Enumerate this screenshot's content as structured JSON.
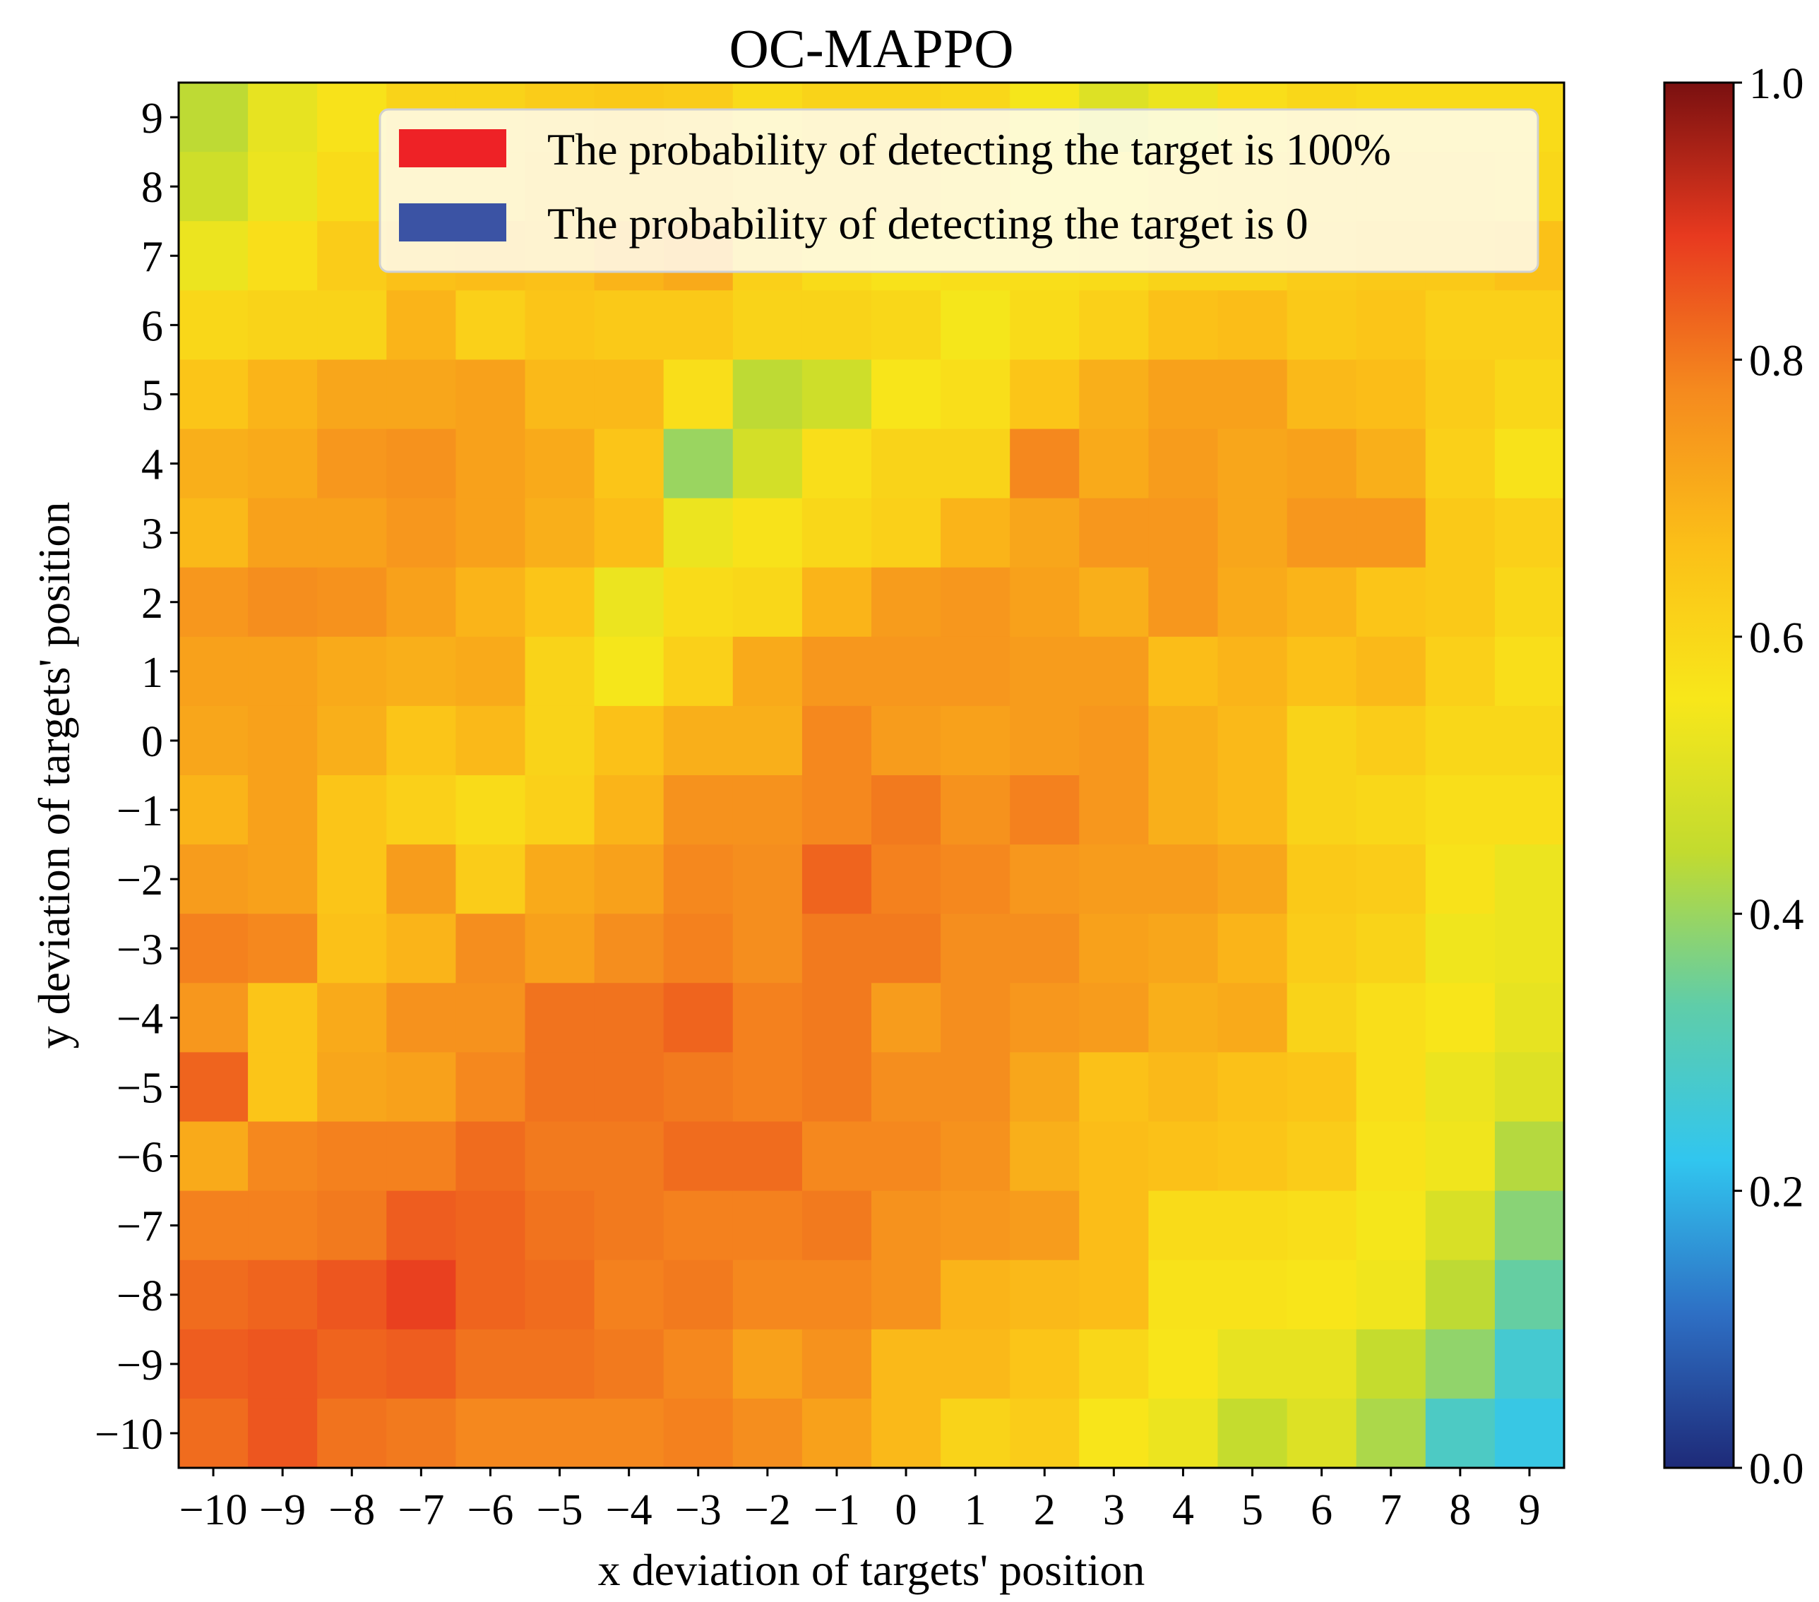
{
  "chart_data": {
    "type": "heatmap",
    "title": "OC-MAPPO",
    "xlabel": "x deviation of targets' position",
    "ylabel": "y deviation of targets' position",
    "x_ticks": [
      "−10",
      "−9",
      "−8",
      "−7",
      "−6",
      "−5",
      "−4",
      "−3",
      "−2",
      "−1",
      "0",
      "1",
      "2",
      "3",
      "4",
      "5",
      "6",
      "7",
      "8",
      "9"
    ],
    "y_ticks": [
      "9",
      "8",
      "7",
      "6",
      "5",
      "4",
      "3",
      "2",
      "1",
      "0",
      "−1",
      "−2",
      "−3",
      "−4",
      "−5",
      "−6",
      "−7",
      "−8",
      "−9",
      "−10"
    ],
    "colorbar": {
      "range": [
        0,
        1
      ],
      "ticks": [
        "0.0",
        "0.2",
        "0.4",
        "0.6",
        "0.8",
        "1.0"
      ],
      "stops": [
        "#1e2a78",
        "#2e6fc4",
        "#31c6ef",
        "#5fcda9",
        "#c2db2f",
        "#f8e71a",
        "#fbbf18",
        "#f58a1e",
        "#e83a1f",
        "#7a1010"
      ]
    },
    "legend": {
      "placement": "top-right",
      "items": [
        {
          "label": "The probability of detecting the target is 100%",
          "color": "#ee2226"
        },
        {
          "label": "The probability of detecting the target is 0",
          "color": "#3b53a4"
        }
      ]
    },
    "values": [
      [
        0.44,
        0.52,
        0.57,
        0.61,
        0.61,
        0.63,
        0.64,
        0.63,
        0.59,
        0.61,
        0.61,
        0.6,
        0.55,
        0.5,
        0.53,
        0.58,
        0.6,
        0.59,
        0.59,
        0.59
      ],
      [
        0.47,
        0.53,
        0.59,
        0.61,
        0.62,
        0.64,
        0.64,
        0.64,
        0.61,
        0.62,
        0.61,
        0.59,
        0.56,
        0.56,
        0.59,
        0.6,
        0.61,
        0.62,
        0.61,
        0.6
      ],
      [
        0.53,
        0.58,
        0.63,
        0.66,
        0.67,
        0.66,
        0.69,
        0.71,
        0.62,
        0.59,
        0.57,
        0.58,
        0.58,
        0.59,
        0.61,
        0.61,
        0.63,
        0.64,
        0.64,
        0.66
      ],
      [
        0.6,
        0.61,
        0.61,
        0.69,
        0.62,
        0.65,
        0.64,
        0.64,
        0.61,
        0.61,
        0.6,
        0.55,
        0.59,
        0.62,
        0.66,
        0.67,
        0.64,
        0.65,
        0.62,
        0.62
      ],
      [
        0.65,
        0.69,
        0.72,
        0.72,
        0.73,
        0.68,
        0.68,
        0.58,
        0.44,
        0.47,
        0.56,
        0.58,
        0.65,
        0.7,
        0.73,
        0.73,
        0.68,
        0.67,
        0.63,
        0.6
      ],
      [
        0.7,
        0.71,
        0.75,
        0.76,
        0.73,
        0.71,
        0.65,
        0.4,
        0.48,
        0.58,
        0.61,
        0.61,
        0.78,
        0.71,
        0.74,
        0.72,
        0.73,
        0.7,
        0.62,
        0.57
      ],
      [
        0.68,
        0.73,
        0.73,
        0.75,
        0.73,
        0.7,
        0.67,
        0.53,
        0.57,
        0.6,
        0.62,
        0.69,
        0.72,
        0.75,
        0.75,
        0.72,
        0.75,
        0.75,
        0.64,
        0.62
      ],
      [
        0.75,
        0.77,
        0.76,
        0.73,
        0.69,
        0.65,
        0.53,
        0.59,
        0.6,
        0.69,
        0.74,
        0.75,
        0.73,
        0.7,
        0.75,
        0.71,
        0.69,
        0.65,
        0.64,
        0.6
      ],
      [
        0.73,
        0.73,
        0.71,
        0.7,
        0.71,
        0.61,
        0.55,
        0.62,
        0.71,
        0.75,
        0.75,
        0.75,
        0.74,
        0.74,
        0.67,
        0.69,
        0.66,
        0.68,
        0.62,
        0.58
      ],
      [
        0.72,
        0.73,
        0.7,
        0.65,
        0.68,
        0.61,
        0.66,
        0.7,
        0.7,
        0.78,
        0.74,
        0.73,
        0.74,
        0.75,
        0.7,
        0.68,
        0.61,
        0.63,
        0.6,
        0.6
      ],
      [
        0.69,
        0.73,
        0.65,
        0.62,
        0.59,
        0.62,
        0.69,
        0.76,
        0.76,
        0.78,
        0.8,
        0.76,
        0.79,
        0.75,
        0.7,
        0.68,
        0.61,
        0.6,
        0.58,
        0.58
      ],
      [
        0.74,
        0.73,
        0.65,
        0.74,
        0.63,
        0.71,
        0.73,
        0.78,
        0.77,
        0.83,
        0.79,
        0.78,
        0.75,
        0.74,
        0.74,
        0.72,
        0.64,
        0.63,
        0.57,
        0.53
      ],
      [
        0.79,
        0.78,
        0.66,
        0.69,
        0.77,
        0.73,
        0.77,
        0.79,
        0.77,
        0.8,
        0.8,
        0.77,
        0.77,
        0.73,
        0.72,
        0.69,
        0.63,
        0.61,
        0.54,
        0.53
      ],
      [
        0.75,
        0.65,
        0.71,
        0.76,
        0.76,
        0.81,
        0.81,
        0.83,
        0.79,
        0.8,
        0.74,
        0.77,
        0.75,
        0.74,
        0.7,
        0.71,
        0.61,
        0.58,
        0.56,
        0.52
      ],
      [
        0.83,
        0.65,
        0.72,
        0.73,
        0.78,
        0.81,
        0.81,
        0.8,
        0.79,
        0.8,
        0.77,
        0.77,
        0.72,
        0.66,
        0.68,
        0.66,
        0.65,
        0.58,
        0.53,
        0.5
      ],
      [
        0.71,
        0.78,
        0.79,
        0.79,
        0.82,
        0.8,
        0.8,
        0.82,
        0.82,
        0.78,
        0.78,
        0.76,
        0.7,
        0.67,
        0.66,
        0.65,
        0.63,
        0.57,
        0.54,
        0.43
      ],
      [
        0.79,
        0.79,
        0.8,
        0.84,
        0.83,
        0.81,
        0.8,
        0.79,
        0.79,
        0.8,
        0.76,
        0.75,
        0.74,
        0.67,
        0.59,
        0.59,
        0.58,
        0.55,
        0.49,
        0.38
      ],
      [
        0.82,
        0.83,
        0.85,
        0.88,
        0.83,
        0.82,
        0.79,
        0.8,
        0.78,
        0.78,
        0.76,
        0.69,
        0.68,
        0.67,
        0.57,
        0.57,
        0.56,
        0.54,
        0.44,
        0.34
      ],
      [
        0.84,
        0.85,
        0.83,
        0.84,
        0.81,
        0.81,
        0.8,
        0.78,
        0.73,
        0.76,
        0.68,
        0.68,
        0.65,
        0.6,
        0.56,
        0.52,
        0.52,
        0.45,
        0.39,
        0.27
      ],
      [
        0.82,
        0.85,
        0.81,
        0.8,
        0.78,
        0.78,
        0.78,
        0.79,
        0.77,
        0.73,
        0.68,
        0.61,
        0.63,
        0.56,
        0.53,
        0.45,
        0.5,
        0.42,
        0.29,
        0.24
      ]
    ]
  }
}
